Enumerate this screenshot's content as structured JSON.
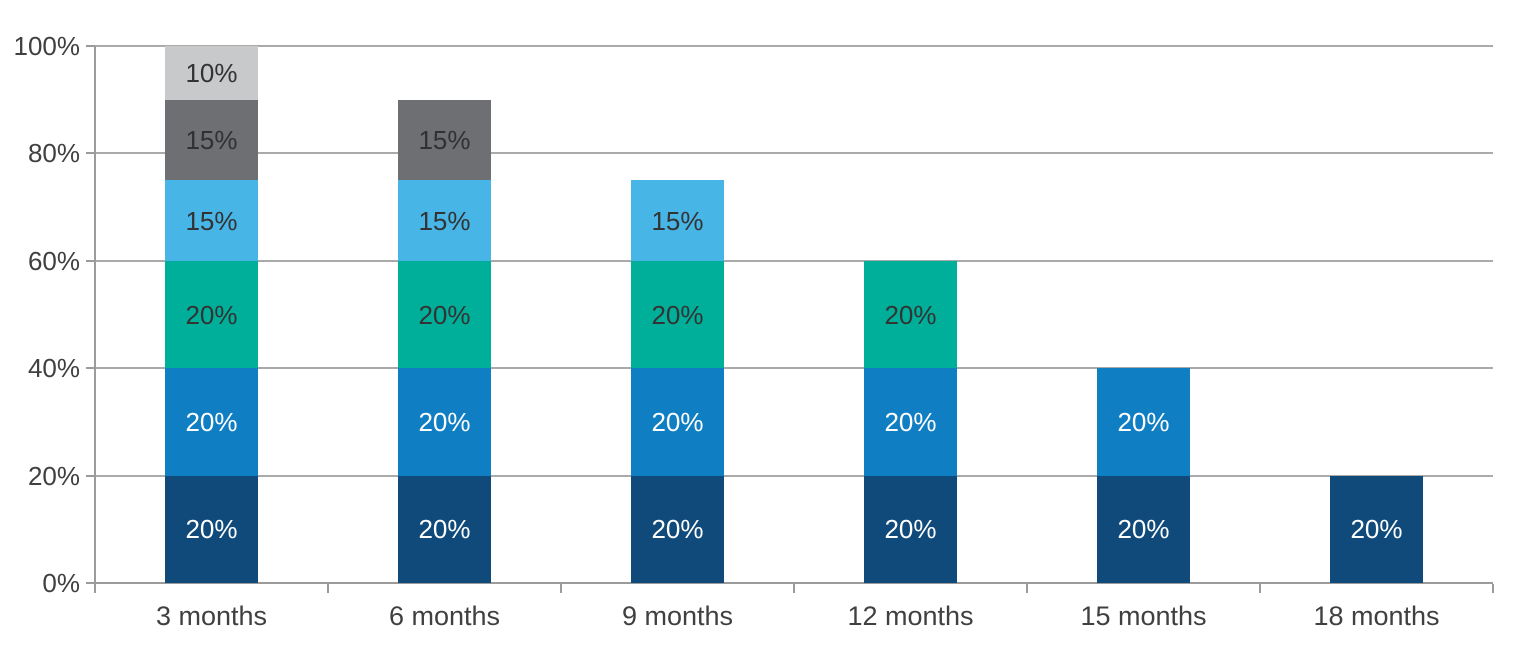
{
  "chart_data": {
    "type": "bar",
    "stacked": true,
    "title": "",
    "categories": [
      "3 months",
      "6 months",
      "9 months",
      "12 months",
      "15 months",
      "18 months"
    ],
    "series": [
      {
        "color": "#0f4a7b",
        "label_color": "#ffffff",
        "values": [
          20,
          20,
          20,
          20,
          20,
          20
        ]
      },
      {
        "color": "#0f7ec3",
        "label_color": "#ffffff",
        "values": [
          20,
          20,
          20,
          20,
          20,
          0
        ]
      },
      {
        "color": "#00af99",
        "label_color": "#333333",
        "values": [
          20,
          20,
          20,
          20,
          0,
          0
        ]
      },
      {
        "color": "#47b6e6",
        "label_color": "#333333",
        "values": [
          15,
          15,
          15,
          0,
          0,
          0
        ]
      },
      {
        "color": "#6d6f72",
        "label_color": "#2f3133",
        "values": [
          15,
          15,
          0,
          0,
          0,
          0
        ]
      },
      {
        "color": "#c8c9ca",
        "label_color": "#333333",
        "values": [
          10,
          0,
          0,
          0,
          0,
          0
        ]
      }
    ],
    "data_label_suffix": "%",
    "y_ticks": [
      "0%",
      "20%",
      "40%",
      "60%",
      "80%",
      "100%"
    ],
    "ylim": [
      0,
      100
    ],
    "grid": true,
    "legend": "none",
    "gridline_color": "#aaaaaa",
    "axis_color": "#9b9b9b",
    "tick_label_color": "#404040",
    "background_color": "#ffffff"
  }
}
